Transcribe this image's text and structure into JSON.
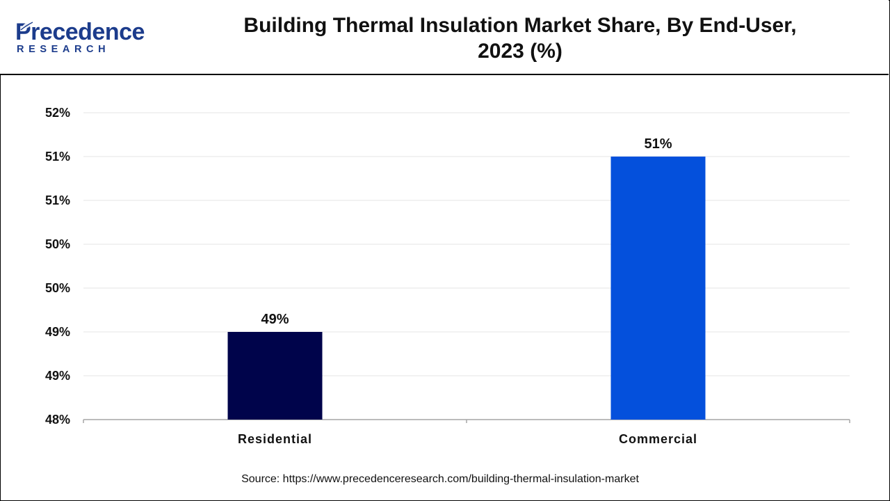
{
  "brand": {
    "name": "Precedence",
    "sub": "RESEARCH",
    "color": "#1c3c8c"
  },
  "title_line1": "Building Thermal Insulation Market Share, By End-User,",
  "title_line2": "2023 (%)",
  "source": "Source: https://www.precedenceresearch.com/building-thermal-insulation-market",
  "chart_data": {
    "type": "bar",
    "title": "Building Thermal Insulation Market Share, By End-User, 2023 (%)",
    "categories": [
      "Residential",
      "Commercial"
    ],
    "values": [
      49,
      51
    ],
    "data_labels": [
      "49%",
      "51%"
    ],
    "colors": [
      "#00044b",
      "#0450dc"
    ],
    "ylim": [
      48,
      51.5
    ],
    "y_ticks": [
      48,
      48.5,
      49,
      49.5,
      50,
      50.5,
      51,
      51.5
    ],
    "y_tick_labels": [
      "48%",
      "49%",
      "49%",
      "50%",
      "50%",
      "51%",
      "51%",
      "52%"
    ],
    "xlabel": "",
    "ylabel": "",
    "grid": true,
    "legend": "none"
  }
}
